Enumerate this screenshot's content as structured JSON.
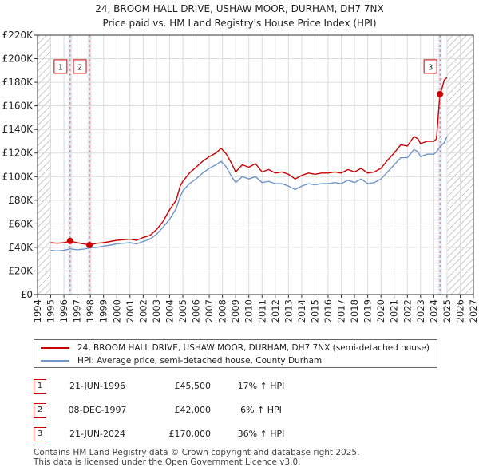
{
  "title_line1": "24, BROOM HALL DRIVE, USHAW MOOR, DURHAM, DH7 7NX",
  "title_line2": "Price paid vs. HM Land Registry's House Price Index (HPI)",
  "colors": {
    "property": "#cc0000",
    "hpi": "#6f97c8",
    "hatch": "#c8c8c8",
    "grid": "#dcdcdc",
    "band": "#e6ecf6",
    "vline": "#e06666"
  },
  "chart_data": {
    "type": "line",
    "xlim": [
      1994,
      2027
    ],
    "ylim": [
      0,
      220000
    ],
    "x_ticks": [
      1994,
      1995,
      1996,
      1997,
      1998,
      1999,
      2000,
      2001,
      2002,
      2003,
      2004,
      2005,
      2006,
      2007,
      2008,
      2009,
      2010,
      2011,
      2012,
      2013,
      2014,
      2015,
      2016,
      2017,
      2018,
      2019,
      2020,
      2021,
      2022,
      2023,
      2024,
      2025,
      2026,
      2027
    ],
    "x_tick_labels": [
      "1994",
      "1995",
      "1996",
      "1997",
      "1998",
      "1999",
      "2000",
      "2001",
      "2002",
      "2003",
      "2004",
      "2005",
      "2006",
      "2007",
      "2008",
      "2009",
      "2010",
      "2011",
      "2012",
      "2013",
      "2014",
      "2015",
      "2016",
      "2017",
      "2018",
      "2019",
      "2020",
      "2021",
      "2022",
      "2023",
      "2024",
      "2025",
      "2026",
      "2027"
    ],
    "y_ticks": [
      0,
      20000,
      40000,
      60000,
      80000,
      100000,
      120000,
      140000,
      160000,
      180000,
      200000,
      220000
    ],
    "y_tick_labels": [
      "£0",
      "£20K",
      "£40K",
      "£60K",
      "£80K",
      "£100K",
      "£120K",
      "£140K",
      "£160K",
      "£180K",
      "£200K",
      "£220K"
    ],
    "data_start": 1995.0,
    "data_end": 2025.0,
    "series": [
      {
        "name": "24, BROOM HALL DRIVE, USHAW MOOR, DURHAM, DH7 7NX (semi-detached house)",
        "points": [
          [
            1995.0,
            44000
          ],
          [
            1995.5,
            43500
          ],
          [
            1996.0,
            44000
          ],
          [
            1996.47,
            45500
          ],
          [
            1997.0,
            44000
          ],
          [
            1997.5,
            43000
          ],
          [
            1997.93,
            42000
          ],
          [
            1998.5,
            43500
          ],
          [
            1999.0,
            44000
          ],
          [
            1999.5,
            45000
          ],
          [
            2000.0,
            46000
          ],
          [
            2000.5,
            46500
          ],
          [
            2001.0,
            47000
          ],
          [
            2001.5,
            46000
          ],
          [
            2002.0,
            48500
          ],
          [
            2002.5,
            50000
          ],
          [
            2003.0,
            55000
          ],
          [
            2003.5,
            62000
          ],
          [
            2004.0,
            72000
          ],
          [
            2004.5,
            80000
          ],
          [
            2004.8,
            92000
          ],
          [
            2005.0,
            96000
          ],
          [
            2005.5,
            103000
          ],
          [
            2006.0,
            108000
          ],
          [
            2006.5,
            113000
          ],
          [
            2007.0,
            117000
          ],
          [
            2007.5,
            120000
          ],
          [
            2007.9,
            124000
          ],
          [
            2008.3,
            119000
          ],
          [
            2008.7,
            111000
          ],
          [
            2009.0,
            104000
          ],
          [
            2009.5,
            110000
          ],
          [
            2010.0,
            108000
          ],
          [
            2010.5,
            111000
          ],
          [
            2011.0,
            104000
          ],
          [
            2011.5,
            106000
          ],
          [
            2012.0,
            103000
          ],
          [
            2012.5,
            104000
          ],
          [
            2013.0,
            102000
          ],
          [
            2013.5,
            98000
          ],
          [
            2014.0,
            101000
          ],
          [
            2014.5,
            103000
          ],
          [
            2015.0,
            102000
          ],
          [
            2015.5,
            103000
          ],
          [
            2016.0,
            103000
          ],
          [
            2016.5,
            104000
          ],
          [
            2017.0,
            103000
          ],
          [
            2017.5,
            106000
          ],
          [
            2018.0,
            104000
          ],
          [
            2018.5,
            107000
          ],
          [
            2019.0,
            103000
          ],
          [
            2019.5,
            104000
          ],
          [
            2020.0,
            107000
          ],
          [
            2020.5,
            114000
          ],
          [
            2021.0,
            120000
          ],
          [
            2021.5,
            127000
          ],
          [
            2022.0,
            126000
          ],
          [
            2022.5,
            134000
          ],
          [
            2022.8,
            132000
          ],
          [
            2023.0,
            128000
          ],
          [
            2023.5,
            130000
          ],
          [
            2024.0,
            130000
          ],
          [
            2024.2,
            132000
          ],
          [
            2024.47,
            170000
          ],
          [
            2024.6,
            174000
          ],
          [
            2024.8,
            182000
          ],
          [
            2025.0,
            184000
          ]
        ]
      },
      {
        "name": "HPI: Average price, semi-detached house, County Durham",
        "points": [
          [
            1995.0,
            37500
          ],
          [
            1995.5,
            37000
          ],
          [
            1996.0,
            37500
          ],
          [
            1996.47,
            38800
          ],
          [
            1997.0,
            38000
          ],
          [
            1997.5,
            38500
          ],
          [
            1997.93,
            39500
          ],
          [
            1998.5,
            40000
          ],
          [
            1999.0,
            41000
          ],
          [
            1999.5,
            42000
          ],
          [
            2000.0,
            43000
          ],
          [
            2000.5,
            43500
          ],
          [
            2001.0,
            44000
          ],
          [
            2001.5,
            43000
          ],
          [
            2002.0,
            45000
          ],
          [
            2002.5,
            47000
          ],
          [
            2003.0,
            51000
          ],
          [
            2003.5,
            57000
          ],
          [
            2004.0,
            64000
          ],
          [
            2004.5,
            73000
          ],
          [
            2004.8,
            83000
          ],
          [
            2005.0,
            88000
          ],
          [
            2005.5,
            94000
          ],
          [
            2006.0,
            98000
          ],
          [
            2006.5,
            103000
          ],
          [
            2007.0,
            107000
          ],
          [
            2007.5,
            110000
          ],
          [
            2007.9,
            113000
          ],
          [
            2008.3,
            108000
          ],
          [
            2008.7,
            100000
          ],
          [
            2009.0,
            95000
          ],
          [
            2009.5,
            100000
          ],
          [
            2010.0,
            98000
          ],
          [
            2010.5,
            100000
          ],
          [
            2011.0,
            95000
          ],
          [
            2011.5,
            96000
          ],
          [
            2012.0,
            94000
          ],
          [
            2012.5,
            94000
          ],
          [
            2013.0,
            92000
          ],
          [
            2013.5,
            89000
          ],
          [
            2014.0,
            92000
          ],
          [
            2014.5,
            94000
          ],
          [
            2015.0,
            93000
          ],
          [
            2015.5,
            94000
          ],
          [
            2016.0,
            94000
          ],
          [
            2016.5,
            95000
          ],
          [
            2017.0,
            94000
          ],
          [
            2017.5,
            97000
          ],
          [
            2018.0,
            95000
          ],
          [
            2018.5,
            98000
          ],
          [
            2019.0,
            94000
          ],
          [
            2019.5,
            95000
          ],
          [
            2020.0,
            98000
          ],
          [
            2020.5,
            104000
          ],
          [
            2021.0,
            110000
          ],
          [
            2021.5,
            116000
          ],
          [
            2022.0,
            116000
          ],
          [
            2022.5,
            123000
          ],
          [
            2022.8,
            121000
          ],
          [
            2023.0,
            117000
          ],
          [
            2023.5,
            119000
          ],
          [
            2024.0,
            119000
          ],
          [
            2024.2,
            121000
          ],
          [
            2024.47,
            125000
          ],
          [
            2024.8,
            129000
          ],
          [
            2025.0,
            134000
          ]
        ]
      }
    ],
    "sales": [
      {
        "label": "1",
        "x": 1996.47,
        "price": 45500
      },
      {
        "label": "2",
        "x": 1997.93,
        "price": 42000
      },
      {
        "label": "3",
        "x": 2024.47,
        "price": 170000
      }
    ],
    "marker_label_level": 193000
  },
  "legend": {
    "property_label": "24, BROOM HALL DRIVE, USHAW MOOR, DURHAM, DH7 7NX (semi-detached house)",
    "hpi_label": "HPI: Average price, semi-detached house, County Durham"
  },
  "sales_table": [
    {
      "num": "1",
      "date": "21-JUN-1996",
      "price": "£45,500",
      "hpi": "17% ↑ HPI"
    },
    {
      "num": "2",
      "date": "08-DEC-1997",
      "price": "£42,000",
      "hpi": "6% ↑ HPI"
    },
    {
      "num": "3",
      "date": "21-JUN-2024",
      "price": "£170,000",
      "hpi": "36% ↑ HPI"
    }
  ],
  "footer_line1": "Contains HM Land Registry data © Crown copyright and database right 2025.",
  "footer_line2": "This data is licensed under the Open Government Licence v3.0."
}
